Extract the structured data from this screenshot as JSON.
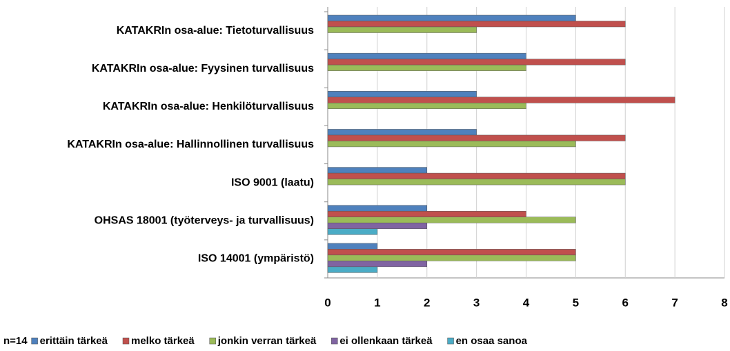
{
  "chart_data": {
    "type": "bar",
    "orientation": "horizontal",
    "categories": [
      "KATAKRIn osa-alue: Tietoturvallisuus",
      "KATAKRIn osa-alue: Fyysinen turvallisuus",
      "KATAKRIn osa-alue: Henkilöturvallisuus",
      "KATAKRIn osa-alue: Hallinnollinen turvallisuus",
      "ISO 9001 (laatu)",
      "OHSAS 18001 (työterveys- ja turvallisuus)",
      "ISO 14001 (ympäristö)"
    ],
    "series": [
      {
        "name": "erittäin tärkeä",
        "color": "#4f81bd",
        "values": [
          5,
          4,
          3,
          3,
          2,
          2,
          1
        ]
      },
      {
        "name": "melko tärkeä",
        "color": "#c0504d",
        "values": [
          6,
          6,
          7,
          6,
          6,
          4,
          5
        ]
      },
      {
        "name": "jonkin verran tärkeä",
        "color": "#9bbb59",
        "values": [
          3,
          4,
          4,
          5,
          6,
          5,
          5
        ]
      },
      {
        "name": "ei ollenkaan tärkeä",
        "color": "#8064a2",
        "values": [
          0,
          0,
          0,
          0,
          0,
          2,
          2
        ]
      },
      {
        "name": "en osaa sanoa",
        "color": "#4bacc6",
        "values": [
          0,
          0,
          0,
          0,
          0,
          1,
          1
        ]
      }
    ],
    "legend_title": "n=14",
    "xlim": [
      0,
      8
    ],
    "xticks": [
      0,
      1,
      2,
      3,
      4,
      5,
      6,
      7,
      8
    ],
    "grid": true,
    "legend": "bottom"
  }
}
